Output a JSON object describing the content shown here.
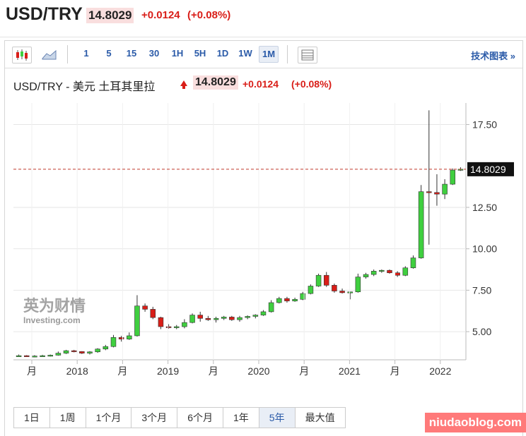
{
  "header": {
    "symbol": "USD/TRY",
    "price": "14.8029",
    "change": "+0.0124",
    "change_pct": "(+0.08%)"
  },
  "toolbar": {
    "intervals": [
      "1",
      "5",
      "15",
      "30",
      "1H",
      "5H",
      "1D",
      "1W",
      "1M"
    ],
    "active_interval": "1M",
    "tech_chart_label": "技术图表"
  },
  "subheader": {
    "title": "USD/TRY - 美元 土耳其里拉",
    "price": "14.8029",
    "change": "+0.0124",
    "change_pct": "(+0.08%)"
  },
  "ranges": {
    "items": [
      "1日",
      "1周",
      "1个月",
      "3个月",
      "6个月",
      "1年",
      "5年",
      "最大值"
    ],
    "active": "5年"
  },
  "watermark": {
    "logo_cn": "英为财情",
    "logo_en": "Investing.com",
    "site": "niudaoblog.com"
  },
  "colors": {
    "up": "#3fcf3f",
    "down": "#d91e18",
    "link": "#2a5aa8",
    "price_highlight": "#f9dede"
  },
  "chart_data": {
    "type": "candlestick",
    "x_tick_labels": [
      "月",
      "2018",
      "月",
      "2019",
      "月",
      "2020",
      "月",
      "2021",
      "月",
      "2022"
    ],
    "y_tick_labels": [
      "17.50",
      "12.50",
      "10.00",
      "7.50",
      "5.00"
    ],
    "ylim": [
      3.3,
      18.8
    ],
    "current_price": 14.8029,
    "current_price_label": "14.8029",
    "candles": [
      [
        3.55,
        3.62,
        3.5,
        3.55
      ],
      [
        3.55,
        3.58,
        3.48,
        3.52
      ],
      [
        3.52,
        3.58,
        3.45,
        3.53
      ],
      [
        3.53,
        3.6,
        3.48,
        3.55
      ],
      [
        3.55,
        3.62,
        3.5,
        3.58
      ],
      [
        3.58,
        3.8,
        3.55,
        3.7
      ],
      [
        3.7,
        3.9,
        3.65,
        3.85
      ],
      [
        3.85,
        3.9,
        3.75,
        3.8
      ],
      [
        3.8,
        3.82,
        3.65,
        3.7
      ],
      [
        3.7,
        3.82,
        3.62,
        3.78
      ],
      [
        3.78,
        4.0,
        3.72,
        3.95
      ],
      [
        3.95,
        4.2,
        3.88,
        4.1
      ],
      [
        4.1,
        4.8,
        4.05,
        4.65
      ],
      [
        4.65,
        4.75,
        4.4,
        4.55
      ],
      [
        4.55,
        4.95,
        4.5,
        4.75
      ],
      [
        4.75,
        7.2,
        4.7,
        6.55
      ],
      [
        6.55,
        6.7,
        6.2,
        6.35
      ],
      [
        6.35,
        6.5,
        5.75,
        5.85
      ],
      [
        5.85,
        5.9,
        5.15,
        5.3
      ],
      [
        5.3,
        5.45,
        5.18,
        5.25
      ],
      [
        5.25,
        5.4,
        5.15,
        5.3
      ],
      [
        5.3,
        5.75,
        5.2,
        5.55
      ],
      [
        5.55,
        6.1,
        5.5,
        6.0
      ],
      [
        6.0,
        6.2,
        5.6,
        5.8
      ],
      [
        5.8,
        5.95,
        5.65,
        5.72
      ],
      [
        5.72,
        5.9,
        5.55,
        5.8
      ],
      [
        5.8,
        5.95,
        5.7,
        5.88
      ],
      [
        5.88,
        5.95,
        5.65,
        5.72
      ],
      [
        5.72,
        5.95,
        5.6,
        5.85
      ],
      [
        5.85,
        5.98,
        5.75,
        5.92
      ],
      [
        5.92,
        6.05,
        5.8,
        6.0
      ],
      [
        6.0,
        6.3,
        5.95,
        6.2
      ],
      [
        6.2,
        6.9,
        6.15,
        6.75
      ],
      [
        6.75,
        7.1,
        6.7,
        7.0
      ],
      [
        7.0,
        7.1,
        6.75,
        6.85
      ],
      [
        6.85,
        7.05,
        6.8,
        6.95
      ],
      [
        6.95,
        7.4,
        6.9,
        7.3
      ],
      [
        7.3,
        7.85,
        7.25,
        7.75
      ],
      [
        7.75,
        8.5,
        7.7,
        8.4
      ],
      [
        8.4,
        8.6,
        7.7,
        7.8
      ],
      [
        7.8,
        7.9,
        7.35,
        7.45
      ],
      [
        7.45,
        7.6,
        7.3,
        7.35
      ],
      [
        7.35,
        7.4,
        6.95,
        7.4
      ],
      [
        7.4,
        8.5,
        7.35,
        8.3
      ],
      [
        8.3,
        8.55,
        8.2,
        8.45
      ],
      [
        8.45,
        8.75,
        8.35,
        8.65
      ],
      [
        8.65,
        8.75,
        8.55,
        8.7
      ],
      [
        8.7,
        8.75,
        8.5,
        8.55
      ],
      [
        8.55,
        8.65,
        8.3,
        8.4
      ],
      [
        8.4,
        8.95,
        8.35,
        8.85
      ],
      [
        8.85,
        9.6,
        8.8,
        9.45
      ],
      [
        9.45,
        13.85,
        9.4,
        13.45
      ],
      [
        13.45,
        18.36,
        10.25,
        13.4
      ],
      [
        13.4,
        14.5,
        12.6,
        13.3
      ],
      [
        13.3,
        14.2,
        13.0,
        13.9
      ],
      [
        13.9,
        14.85,
        13.85,
        14.75
      ],
      [
        14.75,
        14.92,
        14.7,
        14.8029
      ]
    ]
  }
}
